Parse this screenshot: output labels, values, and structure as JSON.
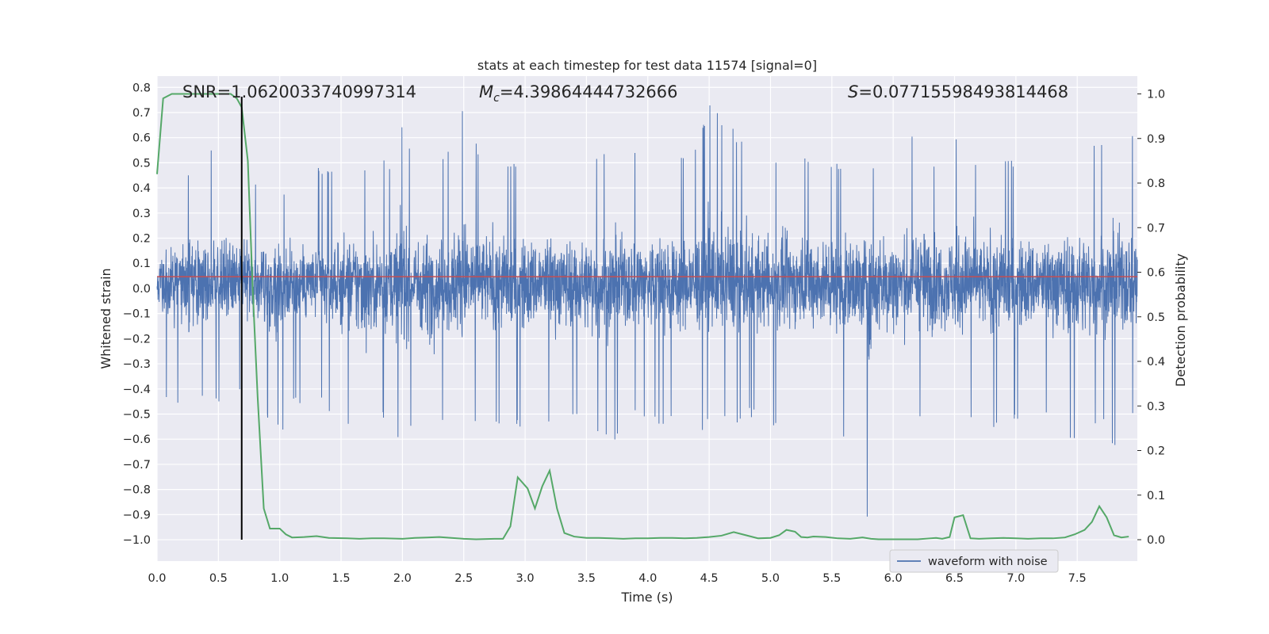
{
  "chart_data": {
    "type": "line",
    "title": "stats at each timestep for test data 11574 [signal=0]",
    "xlabel": "Time (s)",
    "ylabel": "Whitened strain",
    "y2label": "Detection probability",
    "xlim": [
      0,
      7.99
    ],
    "ylim": [
      -1.085,
      0.845
    ],
    "y2lim": [
      -0.048,
      1.04
    ],
    "grid": true,
    "legend_loc": "lower right",
    "xticks": [
      "0.0",
      "0.5",
      "1.0",
      "1.5",
      "2.0",
      "2.5",
      "3.0",
      "3.5",
      "4.0",
      "4.5",
      "5.0",
      "5.5",
      "6.0",
      "6.5",
      "7.0",
      "7.5"
    ],
    "yticks": [
      "0.8",
      "0.7",
      "0.6",
      "0.5",
      "0.4",
      "0.3",
      "0.2",
      "0.1",
      "0.0",
      "-0.1",
      "-0.2",
      "-0.3",
      "-0.4",
      "-0.5",
      "-0.6",
      "-0.7",
      "-0.8",
      "-0.9",
      "-1.0"
    ],
    "y2ticks": [
      "1.0",
      "0.9",
      "0.8",
      "0.7",
      "0.6",
      "0.5",
      "0.4",
      "0.3",
      "0.2",
      "0.1",
      "0.0"
    ],
    "annotations": {
      "snr": "SNR=1.0620033740997314",
      "mc_sym": "M",
      "mc_sub": "c",
      "mc_val": "=4.39864444732666",
      "s_sym": "S",
      "s_val": "=0.07715598493814468"
    },
    "threshold": {
      "value": 0.59,
      "color": "#c44e52"
    },
    "marker_time": 0.69,
    "colors": {
      "strain": "#4c72b0",
      "prob": "#55a868",
      "marker": "#000000",
      "bg": "#eaeaf2"
    },
    "series": [
      {
        "name": "waveform with noise",
        "axis": "left",
        "envelope": {
          "t": [
            0.0,
            0.1,
            0.2,
            0.3,
            0.4,
            0.5,
            0.6,
            0.7,
            0.8,
            0.9,
            1.0,
            1.1,
            1.2,
            1.3,
            1.4,
            1.5,
            1.6,
            1.7,
            1.8,
            1.9,
            2.0,
            2.1,
            2.2,
            2.3,
            2.4,
            2.5,
            2.6,
            2.7,
            2.8,
            2.9,
            3.0,
            3.1,
            3.2,
            3.3,
            3.4,
            3.5,
            3.6,
            3.7,
            3.8,
            3.9,
            4.0,
            4.1,
            4.2,
            4.3,
            4.4,
            4.5,
            4.6,
            4.7,
            4.8,
            4.9,
            5.0,
            5.1,
            5.2,
            5.3,
            5.4,
            5.5,
            5.6,
            5.7,
            5.8,
            5.9,
            6.0,
            6.1,
            6.2,
            6.3,
            6.4,
            6.5,
            6.6,
            6.7,
            6.8,
            6.9,
            7.0,
            7.1,
            7.2,
            7.3,
            7.4,
            7.5,
            7.6,
            7.7,
            7.8,
            7.9,
            7.99
          ],
          "max": [
            0.31,
            0.4,
            0.45,
            0.49,
            0.6,
            0.55,
            0.45,
            0.5,
            0.42,
            0.51,
            0.38,
            0.46,
            0.52,
            0.5,
            0.48,
            0.44,
            0.57,
            0.48,
            0.52,
            0.5,
            0.71,
            0.49,
            0.55,
            0.5,
            0.6,
            0.77,
            0.58,
            0.6,
            0.55,
            0.5,
            0.55,
            0.5,
            0.62,
            0.55,
            0.51,
            0.5,
            0.53,
            0.58,
            0.52,
            0.55,
            0.54,
            0.62,
            0.52,
            0.56,
            0.62,
            0.75,
            0.68,
            0.64,
            0.57,
            0.54,
            0.49,
            0.52,
            0.5,
            0.55,
            0.53,
            0.52,
            0.5,
            0.52,
            0.51,
            0.55,
            0.62,
            0.55,
            0.7,
            0.55,
            0.5,
            0.61,
            0.58,
            0.52,
            0.53,
            0.55,
            0.5,
            0.54,
            0.5,
            0.56,
            0.58,
            0.56,
            0.57,
            0.59,
            0.6,
            0.65,
            0.59
          ],
          "min": [
            -0.45,
            -0.44,
            -0.49,
            -0.54,
            -0.44,
            -0.46,
            -0.42,
            -0.43,
            -0.5,
            -0.52,
            -0.6,
            -0.47,
            -0.48,
            -0.44,
            -0.52,
            -0.5,
            -0.64,
            -0.68,
            -0.5,
            -0.55,
            -0.69,
            -0.52,
            -0.7,
            -0.5,
            -0.62,
            -0.55,
            -0.53,
            -0.5,
            -0.58,
            -0.55,
            -0.59,
            -0.5,
            -0.55,
            -0.52,
            -0.5,
            -0.58,
            -0.6,
            -0.65,
            -0.53,
            -0.52,
            -0.58,
            -0.55,
            -0.52,
            -0.5,
            -0.56,
            -0.57,
            -0.5,
            -0.55,
            -0.53,
            -0.52,
            -0.6,
            -0.55,
            -0.52,
            -0.5,
            -0.54,
            -0.57,
            -0.6,
            -0.54,
            -0.97,
            -0.55,
            -0.65,
            -0.55,
            -0.52,
            -0.58,
            -0.5,
            -0.53,
            -0.55,
            -0.5,
            -0.58,
            -0.55,
            -0.54,
            -0.55,
            -0.5,
            -0.52,
            -0.57,
            -0.63,
            -0.58,
            -0.55,
            -0.64,
            -0.55,
            -0.52
          ]
        }
      },
      {
        "name": "detection probability",
        "axis": "right",
        "x": [
          0.0,
          0.05,
          0.12,
          0.2,
          0.3,
          0.45,
          0.6,
          0.65,
          0.69,
          0.74,
          0.78,
          0.82,
          0.87,
          0.92,
          0.95,
          1.0,
          1.05,
          1.1,
          1.2,
          1.3,
          1.4,
          1.55,
          1.65,
          1.75,
          1.85,
          2.0,
          2.1,
          2.2,
          2.3,
          2.4,
          2.5,
          2.6,
          2.75,
          2.82,
          2.88,
          2.94,
          3.02,
          3.08,
          3.14,
          3.2,
          3.26,
          3.32,
          3.4,
          3.5,
          3.6,
          3.7,
          3.8,
          3.9,
          4.0,
          4.1,
          4.2,
          4.3,
          4.4,
          4.5,
          4.6,
          4.7,
          4.8,
          4.9,
          5.0,
          5.07,
          5.13,
          5.2,
          5.25,
          5.3,
          5.35,
          5.45,
          5.55,
          5.65,
          5.75,
          5.82,
          5.88,
          6.0,
          6.1,
          6.2,
          6.3,
          6.35,
          6.4,
          6.46,
          6.5,
          6.57,
          6.63,
          6.7,
          6.8,
          6.9,
          7.0,
          7.1,
          7.2,
          7.3,
          7.4,
          7.48,
          7.56,
          7.62,
          7.68,
          7.74,
          7.8,
          7.86,
          7.92
        ],
        "values": [
          0.82,
          0.99,
          1.0,
          1.0,
          1.0,
          1.0,
          1.0,
          0.99,
          0.97,
          0.85,
          0.56,
          0.32,
          0.07,
          0.025,
          0.025,
          0.025,
          0.012,
          0.005,
          0.006,
          0.008,
          0.004,
          0.003,
          0.002,
          0.003,
          0.003,
          0.002,
          0.004,
          0.005,
          0.006,
          0.004,
          0.002,
          0.001,
          0.002,
          0.002,
          0.03,
          0.14,
          0.115,
          0.07,
          0.12,
          0.155,
          0.07,
          0.015,
          0.007,
          0.004,
          0.004,
          0.003,
          0.002,
          0.003,
          0.003,
          0.004,
          0.004,
          0.003,
          0.004,
          0.006,
          0.009,
          0.017,
          0.01,
          0.003,
          0.004,
          0.01,
          0.022,
          0.018,
          0.006,
          0.005,
          0.007,
          0.006,
          0.003,
          0.002,
          0.005,
          0.002,
          0.001,
          0.001,
          0.001,
          0.001,
          0.003,
          0.004,
          0.002,
          0.006,
          0.05,
          0.055,
          0.003,
          0.002,
          0.003,
          0.004,
          0.003,
          0.002,
          0.003,
          0.003,
          0.005,
          0.012,
          0.022,
          0.04,
          0.075,
          0.05,
          0.01,
          0.005,
          0.007
        ]
      }
    ],
    "legend": [
      "waveform with noise"
    ]
  }
}
